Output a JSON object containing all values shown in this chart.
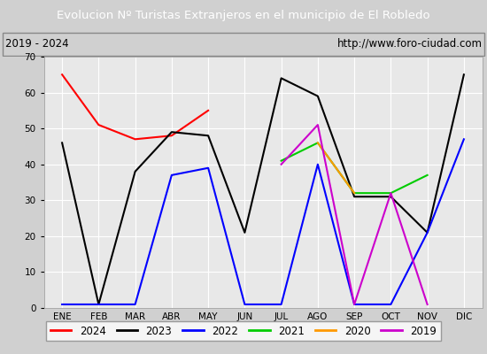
{
  "title": "Evolucion Nº Turistas Extranjeros en el municipio de El Robledo",
  "subtitle_left": "2019 - 2024",
  "subtitle_right": "http://www.foro-ciudad.com",
  "title_bg_color": "#4472c4",
  "title_text_color": "#ffffff",
  "subtitle_bg_color": "#f0f0f0",
  "subtitle_text_color": "#000000",
  "plot_bg_color": "#e8e8e8",
  "months": [
    "ENE",
    "FEB",
    "MAR",
    "ABR",
    "MAY",
    "JUN",
    "JUL",
    "AGO",
    "SEP",
    "OCT",
    "NOV",
    "DIC"
  ],
  "series": {
    "2024": {
      "color": "#ff0000",
      "data": [
        65,
        51,
        47,
        48,
        55,
        null,
        null,
        null,
        null,
        null,
        null,
        null
      ]
    },
    "2023": {
      "color": "#000000",
      "data": [
        46,
        1,
        38,
        49,
        48,
        21,
        64,
        59,
        31,
        31,
        21,
        65
      ]
    },
    "2022": {
      "color": "#0000ff",
      "data": [
        1,
        1,
        1,
        37,
        39,
        1,
        1,
        40,
        1,
        1,
        21,
        47
      ]
    },
    "2021": {
      "color": "#00cc00",
      "data": [
        null,
        null,
        null,
        null,
        null,
        null,
        41,
        46,
        32,
        32,
        37,
        null
      ]
    },
    "2020": {
      "color": "#ff9900",
      "data": [
        null,
        null,
        null,
        null,
        null,
        null,
        null,
        46,
        32,
        null,
        null,
        null
      ]
    },
    "2019": {
      "color": "#cc00cc",
      "data": [
        null,
        null,
        null,
        null,
        null,
        null,
        40,
        51,
        1,
        32,
        1,
        null
      ]
    }
  },
  "ylim": [
    0,
    70
  ],
  "yticks": [
    0,
    10,
    20,
    30,
    40,
    50,
    60,
    70
  ],
  "legend_order": [
    "2024",
    "2023",
    "2022",
    "2021",
    "2020",
    "2019"
  ],
  "fig_bg_color": "#d0d0d0"
}
